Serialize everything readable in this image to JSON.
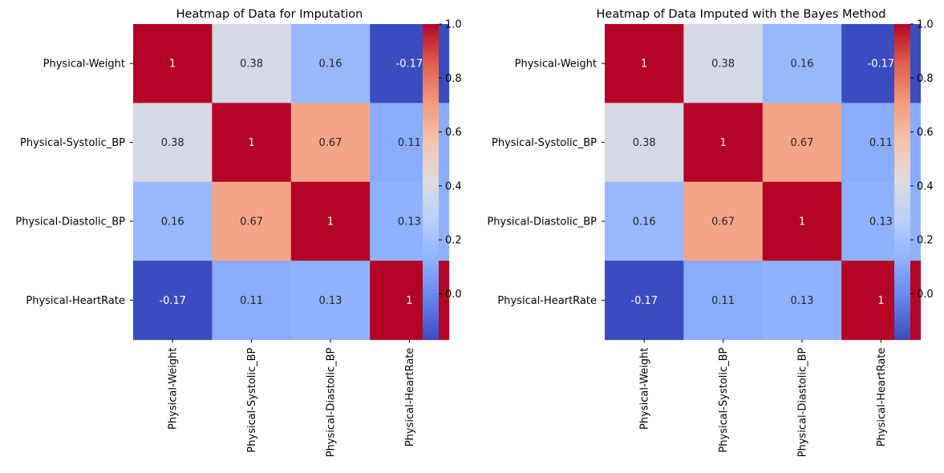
{
  "chart_data": [
    {
      "type": "heatmap",
      "title": "Heatmap of Data for Imputation",
      "x_labels": [
        "Physical-Weight",
        "Physical-Systolic_BP",
        "Physical-Diastolic_BP",
        "Physical-HeartRate"
      ],
      "y_labels": [
        "Physical-Weight",
        "Physical-Systolic_BP",
        "Physical-Diastolic_BP",
        "Physical-HeartRate"
      ],
      "values": [
        [
          1,
          0.38,
          0.16,
          -0.17
        ],
        [
          0.38,
          1,
          0.67,
          0.11
        ],
        [
          0.16,
          0.67,
          1,
          0.13
        ],
        [
          -0.17,
          0.11,
          0.13,
          1
        ]
      ],
      "annotations": [
        [
          "1",
          "0.38",
          "0.16",
          "-0.17"
        ],
        [
          "0.38",
          "1",
          "0.67",
          "0.11"
        ],
        [
          "0.16",
          "0.67",
          "1",
          "0.13"
        ],
        [
          "-0.17",
          "0.11",
          "0.13",
          "1"
        ]
      ],
      "colormap": "coolwarm",
      "vmin": -0.17,
      "vmax": 1,
      "colorbar_ticks": [
        1.0,
        0.8,
        0.6,
        0.4,
        0.2,
        0.0
      ],
      "colorbar_tick_labels": [
        "1.0",
        "0.8",
        "0.6",
        "0.4",
        "0.2",
        "0.0"
      ]
    },
    {
      "type": "heatmap",
      "title": "Heatmap of Data Imputed with the Bayes Method",
      "x_labels": [
        "Physical-Weight",
        "Physical-Systolic_BP",
        "Physical-Diastolic_BP",
        "Physical-HeartRate"
      ],
      "y_labels": [
        "Physical-Weight",
        "Physical-Systolic_BP",
        "Physical-Diastolic_BP",
        "Physical-HeartRate"
      ],
      "values": [
        [
          1,
          0.38,
          0.16,
          -0.17
        ],
        [
          0.38,
          1,
          0.67,
          0.11
        ],
        [
          0.16,
          0.67,
          1,
          0.13
        ],
        [
          -0.17,
          0.11,
          0.13,
          1
        ]
      ],
      "annotations": [
        [
          "1",
          "0.38",
          "0.16",
          "-0.17"
        ],
        [
          "0.38",
          "1",
          "0.67",
          "0.11"
        ],
        [
          "0.16",
          "0.67",
          "1",
          "0.13"
        ],
        [
          "-0.17",
          "0.11",
          "0.13",
          "1"
        ]
      ],
      "colormap": "coolwarm",
      "vmin": -0.17,
      "vmax": 1,
      "colorbar_ticks": [
        1.0,
        0.8,
        0.6,
        0.4,
        0.2,
        0.0
      ],
      "colorbar_tick_labels": [
        "1.0",
        "0.8",
        "0.6",
        "0.4",
        "0.2",
        "0.0"
      ]
    }
  ]
}
